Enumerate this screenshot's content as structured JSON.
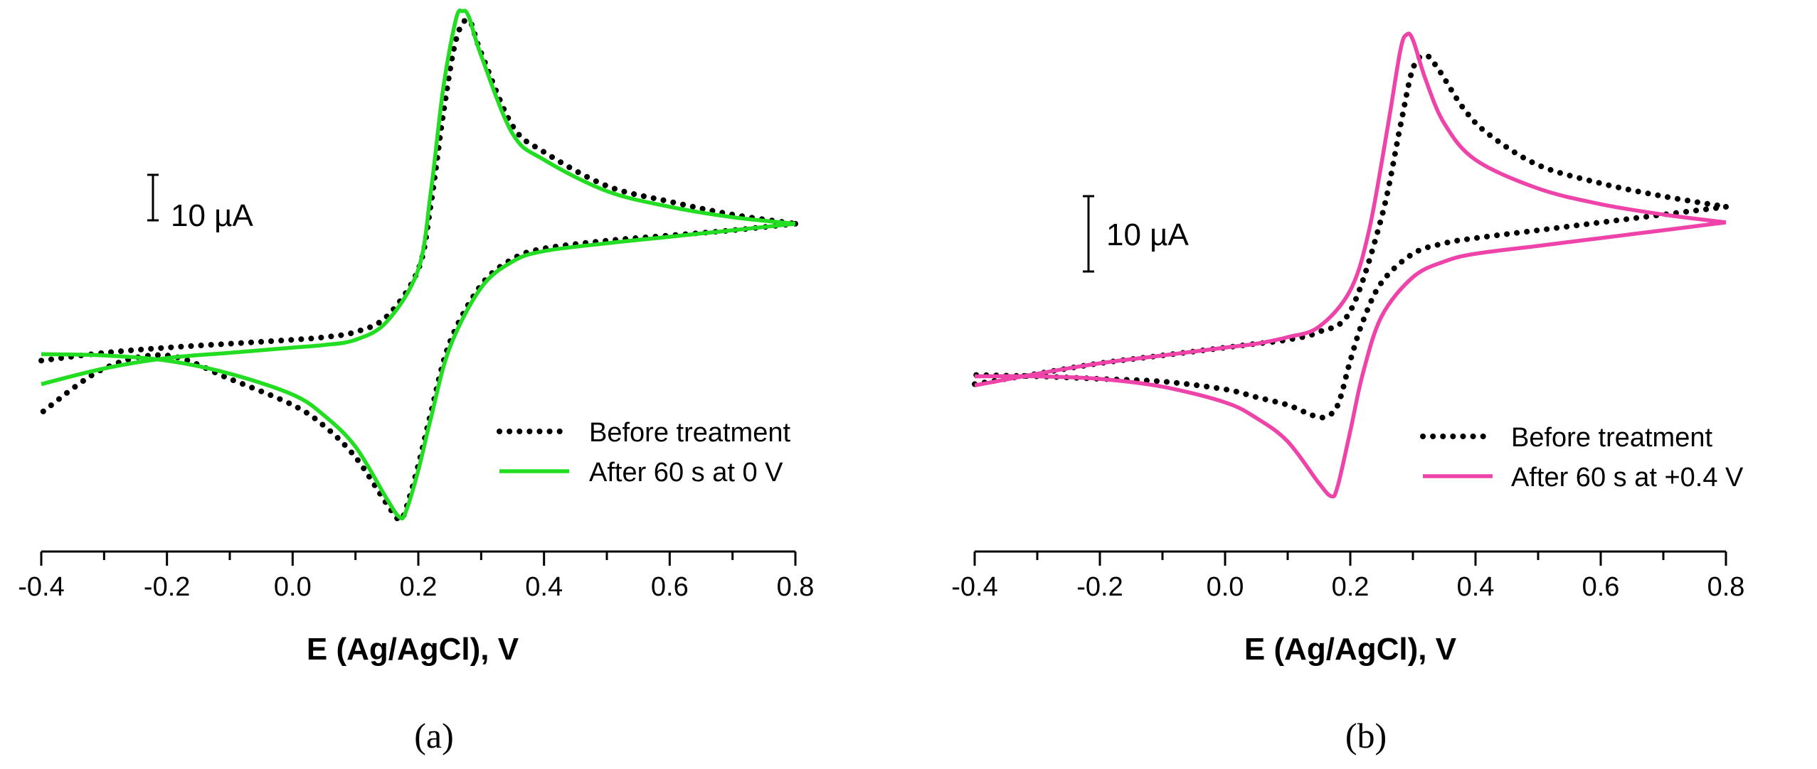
{
  "chart_data": [
    {
      "type": "line",
      "panel_label": "(a)",
      "xlabel": "E (Ag/AgCl), V",
      "ylabel": "",
      "xlim": [
        -0.4,
        0.8
      ],
      "ylim": [
        -1.0,
        1.0
      ],
      "x_ticks": [
        "-0.4",
        "-0.2",
        "0.0",
        "0.2",
        "0.4",
        "0.6",
        "0.8"
      ],
      "x_tick_values": [
        -0.4,
        -0.2,
        0.0,
        0.2,
        0.4,
        0.6,
        0.8
      ],
      "scale_bar_label": "10 µA",
      "legend_position": "lower-right",
      "series": [
        {
          "name": "Before treatment",
          "style": "dotted",
          "color": "#000000",
          "forward": {
            "x": [
              -0.4,
              -0.3,
              -0.2,
              -0.1,
              0.0,
              0.05,
              0.1,
              0.15,
              0.2,
              0.22,
              0.24,
              0.26,
              0.28,
              0.3,
              0.35,
              0.4,
              0.5,
              0.6,
              0.7,
              0.8
            ],
            "y": [
              -0.35,
              -0.32,
              -0.3,
              -0.285,
              -0.27,
              -0.26,
              -0.24,
              -0.18,
              0.0,
              0.25,
              0.6,
              0.88,
              0.955,
              0.83,
              0.55,
              0.45,
              0.32,
              0.26,
              0.21,
              0.175
            ]
          },
          "reverse": {
            "x": [
              0.8,
              0.7,
              0.6,
              0.5,
              0.4,
              0.35,
              0.3,
              0.25,
              0.22,
              0.2,
              0.18,
              0.17,
              0.15,
              0.1,
              0.05,
              0.0,
              -0.1,
              -0.2,
              -0.3,
              -0.4
            ],
            "y": [
              0.175,
              0.15,
              0.13,
              0.11,
              0.08,
              0.04,
              -0.06,
              -0.28,
              -0.55,
              -0.75,
              -0.92,
              -0.96,
              -0.9,
              -0.72,
              -0.6,
              -0.52,
              -0.42,
              -0.33,
              -0.38,
              -0.55
            ]
          }
        },
        {
          "name": "After 60 s at 0 V",
          "style": "solid",
          "color": "#22dd22",
          "forward": {
            "x": [
              -0.4,
              -0.3,
              -0.2,
              -0.1,
              0.0,
              0.05,
              0.1,
              0.15,
              0.2,
              0.22,
              0.24,
              0.26,
              0.27,
              0.28,
              0.3,
              0.35,
              0.4,
              0.5,
              0.6,
              0.7,
              0.8
            ],
            "y": [
              -0.44,
              -0.38,
              -0.34,
              -0.32,
              -0.3,
              -0.29,
              -0.27,
              -0.2,
              0.0,
              0.3,
              0.7,
              0.96,
              0.99,
              0.97,
              0.82,
              0.52,
              0.42,
              0.3,
              0.24,
              0.2,
              0.175
            ]
          },
          "reverse": {
            "x": [
              0.8,
              0.7,
              0.6,
              0.5,
              0.4,
              0.35,
              0.3,
              0.25,
              0.22,
              0.2,
              0.18,
              0.17,
              0.15,
              0.1,
              0.05,
              0.0,
              -0.1,
              -0.2,
              -0.3,
              -0.4
            ],
            "y": [
              0.175,
              0.15,
              0.125,
              0.1,
              0.07,
              0.03,
              -0.07,
              -0.3,
              -0.57,
              -0.77,
              -0.93,
              -0.95,
              -0.88,
              -0.68,
              -0.56,
              -0.48,
              -0.4,
              -0.35,
              -0.33,
              -0.325
            ]
          }
        }
      ]
    },
    {
      "type": "line",
      "panel_label": "(b)",
      "xlabel": "E (Ag/AgCl), V",
      "ylabel": "",
      "xlim": [
        -0.4,
        0.8
      ],
      "ylim": [
        -1.0,
        1.0
      ],
      "x_ticks": [
        "-0.4",
        "-0.2",
        "0.0",
        "0.2",
        "0.4",
        "0.6",
        "0.8"
      ],
      "x_tick_values": [
        -0.4,
        -0.2,
        0.0,
        0.2,
        0.4,
        0.6,
        0.8
      ],
      "scale_bar_label": "10 µA",
      "legend_position": "lower-right",
      "series": [
        {
          "name": "Before treatment",
          "style": "dotted",
          "color": "#000000",
          "forward": {
            "x": [
              -0.4,
              -0.3,
              -0.2,
              -0.1,
              0.0,
              0.05,
              0.1,
              0.15,
              0.2,
              0.25,
              0.28,
              0.3,
              0.32,
              0.34,
              0.38,
              0.42,
              0.5,
              0.6,
              0.7,
              0.8
            ],
            "y": [
              -0.44,
              -0.4,
              -0.36,
              -0.33,
              -0.3,
              -0.285,
              -0.27,
              -0.24,
              -0.16,
              0.2,
              0.55,
              0.77,
              0.82,
              0.77,
              0.62,
              0.52,
              0.4,
              0.33,
              0.28,
              0.24
            ]
          },
          "reverse": {
            "x": [
              0.8,
              0.7,
              0.6,
              0.5,
              0.4,
              0.35,
              0.3,
              0.25,
              0.22,
              0.2,
              0.18,
              0.16,
              0.14,
              0.1,
              0.05,
              0.0,
              -0.1,
              -0.2,
              -0.3,
              -0.4
            ],
            "y": [
              0.24,
              0.21,
              0.18,
              0.15,
              0.12,
              0.1,
              0.06,
              -0.05,
              -0.2,
              -0.35,
              -0.52,
              -0.565,
              -0.56,
              -0.52,
              -0.49,
              -0.46,
              -0.43,
              -0.42,
              -0.41,
              -0.405
            ]
          }
        },
        {
          "name": "After 60 s at +0.4 V",
          "style": "solid",
          "color": "#ee44aa",
          "forward": {
            "x": [
              -0.4,
              -0.3,
              -0.2,
              -0.1,
              0.0,
              0.05,
              0.1,
              0.15,
              0.2,
              0.23,
              0.26,
              0.28,
              0.29,
              0.3,
              0.32,
              0.35,
              0.4,
              0.5,
              0.6,
              0.7,
              0.8
            ],
            "y": [
              -0.445,
              -0.4,
              -0.36,
              -0.33,
              -0.3,
              -0.285,
              -0.26,
              -0.22,
              -0.08,
              0.15,
              0.55,
              0.84,
              0.9,
              0.88,
              0.73,
              0.56,
              0.42,
              0.31,
              0.25,
              0.21,
              0.18
            ]
          },
          "reverse": {
            "x": [
              0.8,
              0.7,
              0.6,
              0.5,
              0.4,
              0.35,
              0.3,
              0.25,
              0.22,
              0.2,
              0.18,
              0.17,
              0.15,
              0.1,
              0.05,
              0.0,
              -0.1,
              -0.2,
              -0.3,
              -0.4
            ],
            "y": [
              0.18,
              0.15,
              0.12,
              0.09,
              0.06,
              0.03,
              -0.03,
              -0.18,
              -0.4,
              -0.62,
              -0.83,
              -0.87,
              -0.82,
              -0.66,
              -0.57,
              -0.51,
              -0.45,
              -0.42,
              -0.41,
              -0.41
            ]
          }
        }
      ]
    }
  ]
}
